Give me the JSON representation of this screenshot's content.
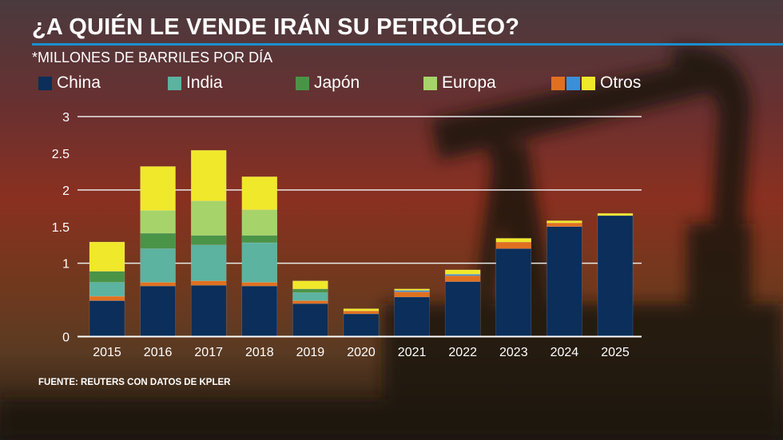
{
  "title": "¿A QUIÉN LE VENDE IRÁN SU PETRÓLEO?",
  "subtitle": "*MILLONES DE BARRILES POR DÍA",
  "source": "FUENTE: REUTERS CON DATOS DE KPLER",
  "legend": [
    {
      "label": "China",
      "colors": [
        "#0b2e5a"
      ]
    },
    {
      "label": "India",
      "colors": [
        "#5bb3a0"
      ]
    },
    {
      "label": "Japón",
      "colors": [
        "#4a9448"
      ]
    },
    {
      "label": "Europa",
      "colors": [
        "#a6d46a"
      ]
    },
    {
      "label": "Otros",
      "colors": [
        "#e07020",
        "#3a8fd8",
        "#f0e82a"
      ]
    }
  ],
  "chart_data": {
    "type": "bar",
    "stacked": true,
    "title": "¿A QUIÉN LE VENDE IRÁN SU PETRÓLEO?",
    "ylabel": "*MILLONES DE BARRILES POR DÍA",
    "ylim": [
      0,
      3
    ],
    "yticks": [
      "0",
      "1",
      "1.5",
      "2",
      "2.5",
      "3"
    ],
    "ytick_values": [
      0,
      1,
      1.5,
      2,
      2.5,
      3
    ],
    "gridlines": [
      1,
      2,
      3
    ],
    "legend_position": "top",
    "categories": [
      "2015",
      "2016",
      "2017",
      "2018",
      "2019",
      "2020",
      "2021",
      "2022",
      "2023",
      "2024",
      "2025"
    ],
    "series": [
      {
        "name": "China",
        "color": "#0b2e5a",
        "values": [
          0.49,
          0.69,
          0.7,
          0.69,
          0.45,
          0.31,
          0.54,
          0.75,
          1.2,
          1.5,
          1.65
        ]
      },
      {
        "name": "Otros",
        "color": "#e07020",
        "values": [
          0.06,
          0.05,
          0.06,
          0.05,
          0.04,
          0.04,
          0.07,
          0.08,
          0.09,
          0.05,
          0.0
        ]
      },
      {
        "name": "Otros",
        "color": "#3a8fd8",
        "values": [
          0,
          0,
          0,
          0,
          0,
          0,
          0.02,
          0.02,
          0,
          0,
          0
        ]
      },
      {
        "name": "India",
        "color": "#5bb3a0",
        "values": [
          0.19,
          0.46,
          0.49,
          0.54,
          0.11,
          0,
          0,
          0,
          0,
          0,
          0
        ]
      },
      {
        "name": "Japón",
        "color": "#4a9448",
        "values": [
          0.15,
          0.21,
          0.13,
          0.1,
          0.05,
          0,
          0,
          0,
          0,
          0,
          0
        ]
      },
      {
        "name": "Europa",
        "color": "#a6d46a",
        "values": [
          0,
          0.31,
          0.47,
          0.35,
          0,
          0,
          0,
          0,
          0,
          0,
          0
        ]
      },
      {
        "name": "Otros",
        "color": "#f0e82a",
        "values": [
          0.4,
          0.6,
          0.69,
          0.45,
          0.11,
          0.03,
          0.02,
          0.06,
          0.05,
          0.03,
          0.03
        ]
      }
    ]
  }
}
